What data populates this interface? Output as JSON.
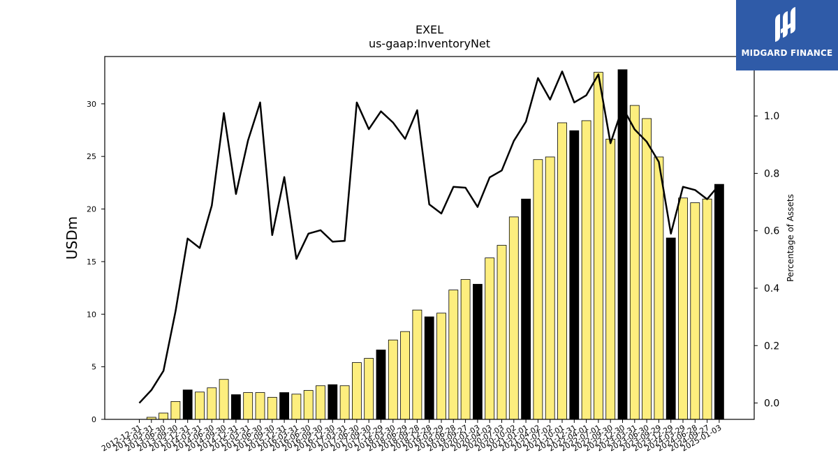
{
  "logo": {
    "text": "MIDGARD FINANCE"
  },
  "colors": {
    "bar_regular": "#fdee7e",
    "bar_highlight": "#000000",
    "line": "#000000"
  },
  "chart_data": {
    "type": "bar",
    "title": "EXEL",
    "subtitle": "us-gaap:InventoryNet",
    "ylabel": "USDm",
    "y2label": "Percentage of Assets",
    "ylim": [
      0,
      34.5
    ],
    "y2lim": [
      -0.057,
      1.207
    ],
    "yticks": [
      0,
      5,
      10,
      15,
      20,
      25,
      30
    ],
    "y2ticks": [
      0.0,
      0.2,
      0.4,
      0.6,
      0.8,
      1.0
    ],
    "grid": false,
    "categories": [
      "2012-12-31",
      "2013-03-31",
      "2013-06-30",
      "2013-09-30",
      "2013-12-31",
      "2014-03-31",
      "2014-06-30",
      "2014-09-30",
      "2014-12-31",
      "2015-03-31",
      "2015-06-30",
      "2015-09-30",
      "2015-12-31",
      "2016-03-31",
      "2016-06-30",
      "2016-09-30",
      "2016-12-30",
      "2017-03-31",
      "2017-06-30",
      "2017-09-30",
      "2017-12-29",
      "2018-03-30",
      "2018-06-29",
      "2018-09-28",
      "2018-12-28",
      "2019-03-29",
      "2019-06-28",
      "2019-09-27",
      "2020-01-03",
      "2020-04-03",
      "2020-07-03",
      "2020-10-02",
      "2021-01-01",
      "2021-04-02",
      "2021-07-02",
      "2021-10-01",
      "2021-12-31",
      "2022-04-01",
      "2022-07-01",
      "2022-09-30",
      "2022-12-30",
      "2023-03-31",
      "2023-06-30",
      "2023-09-29",
      "2023-12-29",
      "2024-03-29",
      "2024-06-28",
      "2024-09-27",
      "2025-01-03"
    ],
    "series": [
      {
        "type": "bar",
        "values": [
          0,
          0.2,
          0.6,
          1.7,
          2.8,
          2.6,
          3.0,
          3.8,
          2.35,
          2.55,
          2.55,
          2.1,
          2.55,
          2.4,
          2.75,
          3.2,
          3.3,
          3.2,
          5.4,
          5.8,
          6.6,
          7.55,
          8.35,
          10.4,
          9.75,
          10.1,
          12.3,
          13.3,
          12.85,
          15.35,
          16.55,
          19.25,
          20.95,
          24.7,
          24.95,
          28.2,
          27.45,
          28.4,
          33.0,
          26.65,
          33.25,
          29.85,
          28.6,
          24.95,
          17.25,
          21.05,
          20.6,
          20.95,
          22.35
        ],
        "highlight": [
          false,
          false,
          false,
          false,
          true,
          false,
          false,
          false,
          true,
          false,
          false,
          false,
          true,
          false,
          false,
          false,
          true,
          false,
          false,
          false,
          true,
          false,
          false,
          false,
          true,
          false,
          false,
          false,
          true,
          false,
          false,
          false,
          true,
          false,
          false,
          false,
          true,
          false,
          false,
          false,
          true,
          false,
          false,
          false,
          true,
          false,
          false,
          false,
          true
        ]
      },
      {
        "type": "line",
        "axis": "right",
        "values": [
          0.0,
          0.045,
          0.112,
          0.32,
          0.573,
          0.54,
          0.688,
          1.01,
          0.728,
          0.915,
          1.047,
          0.585,
          0.787,
          0.502,
          0.59,
          0.602,
          0.562,
          0.565,
          1.047,
          0.954,
          1.016,
          0.977,
          0.92,
          1.02,
          0.692,
          0.66,
          0.753,
          0.75,
          0.683,
          0.786,
          0.81,
          0.913,
          0.98,
          1.132,
          1.057,
          1.155,
          1.047,
          1.072,
          1.145,
          0.905,
          1.03,
          0.953,
          0.91,
          0.84,
          0.59,
          0.753,
          0.742,
          0.71,
          0.76
        ]
      }
    ]
  }
}
